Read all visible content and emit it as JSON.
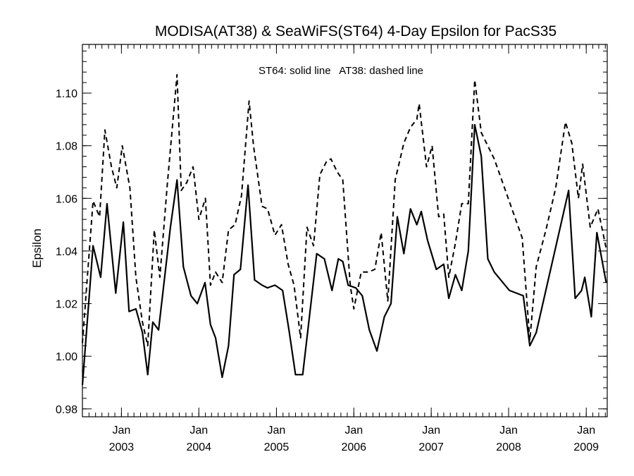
{
  "chart_data": {
    "type": "line",
    "title": "MODISA(AT38) & SeaWiFS(ST64) 4-Day Epsilon for PacS35",
    "annotation": "ST64: solid line   AT38: dashed line",
    "ylabel": "Epsilon",
    "xlabel": "",
    "xlim": [
      "2002-07-01",
      "2009-04-10"
    ],
    "ylim": [
      0.977,
      1.1185
    ],
    "y_ticks": [
      "0.98",
      "1.00",
      "1.02",
      "1.04",
      "1.06",
      "1.08",
      "1.10"
    ],
    "x_ticks": [
      {
        "month": "Jan",
        "year": "2003",
        "date": "2003-01-01"
      },
      {
        "month": "Jan",
        "year": "2004",
        "date": "2004-01-01"
      },
      {
        "month": "Jan",
        "year": "2005",
        "date": "2005-01-01"
      },
      {
        "month": "Jan",
        "year": "2006",
        "date": "2006-01-01"
      },
      {
        "month": "Jan",
        "year": "2007",
        "date": "2007-01-01"
      },
      {
        "month": "Jan",
        "year": "2008",
        "date": "2008-01-01"
      },
      {
        "month": "Jan",
        "year": "2009",
        "date": "2009-01-01"
      }
    ],
    "series": [
      {
        "style": "solid",
        "points": [
          [
            "2002-07-01",
            0.989
          ],
          [
            "2002-08-20",
            1.042
          ],
          [
            "2002-09-25",
            1.03
          ],
          [
            "2002-10-25",
            1.058
          ],
          [
            "2002-12-05",
            1.024
          ],
          [
            "2003-01-10",
            1.051
          ],
          [
            "2003-02-06",
            1.017
          ],
          [
            "2003-03-10",
            1.018
          ],
          [
            "2003-04-10",
            1.009
          ],
          [
            "2003-05-05",
            0.993
          ],
          [
            "2003-05-29",
            1.013
          ],
          [
            "2003-06-25",
            1.01
          ],
          [
            "2003-08-20",
            1.049
          ],
          [
            "2003-09-20",
            1.067
          ],
          [
            "2003-10-20",
            1.034
          ],
          [
            "2003-11-25",
            1.023
          ],
          [
            "2003-12-25",
            1.02
          ],
          [
            "2004-01-30",
            1.028
          ],
          [
            "2004-02-25",
            1.012
          ],
          [
            "2004-03-20",
            1.007
          ],
          [
            "2004-04-20",
            0.992
          ],
          [
            "2004-05-20",
            1.004
          ],
          [
            "2004-06-15",
            1.031
          ],
          [
            "2004-07-15",
            1.033
          ],
          [
            "2004-08-20",
            1.065
          ],
          [
            "2004-09-20",
            1.029
          ],
          [
            "2004-10-25",
            1.027
          ],
          [
            "2004-11-20",
            1.026
          ],
          [
            "2004-12-25",
            1.027
          ],
          [
            "2005-01-30",
            1.025
          ],
          [
            "2005-03-01",
            1.01
          ],
          [
            "2005-04-01",
            0.993
          ],
          [
            "2005-05-05",
            0.993
          ],
          [
            "2005-07-10",
            1.039
          ],
          [
            "2005-08-15",
            1.037
          ],
          [
            "2005-09-20",
            1.025
          ],
          [
            "2005-10-20",
            1.037
          ],
          [
            "2005-11-10",
            1.036
          ],
          [
            "2005-12-05",
            1.027
          ],
          [
            "2006-01-10",
            1.026
          ],
          [
            "2006-02-10",
            1.023
          ],
          [
            "2006-03-15",
            1.01
          ],
          [
            "2006-04-20",
            1.002
          ],
          [
            "2006-05-25",
            1.015
          ],
          [
            "2006-06-25",
            1.02
          ],
          [
            "2006-07-25",
            1.053
          ],
          [
            "2006-08-25",
            1.039
          ],
          [
            "2006-09-25",
            1.056
          ],
          [
            "2006-10-25",
            1.05
          ],
          [
            "2006-11-15",
            1.055
          ],
          [
            "2006-12-15",
            1.044
          ],
          [
            "2007-01-25",
            1.033
          ],
          [
            "2007-03-01",
            1.035
          ],
          [
            "2007-03-25",
            1.022
          ],
          [
            "2007-04-25",
            1.031
          ],
          [
            "2007-05-25",
            1.025
          ],
          [
            "2007-06-25",
            1.04
          ],
          [
            "2007-07-25",
            1.088
          ],
          [
            "2007-08-25",
            1.076
          ],
          [
            "2007-09-25",
            1.037
          ],
          [
            "2007-10-25",
            1.032
          ],
          [
            "2008-01-05",
            1.025
          ],
          [
            "2008-03-10",
            1.023
          ],
          [
            "2008-04-10",
            1.004
          ],
          [
            "2008-05-10",
            1.009
          ],
          [
            "2008-10-10",
            1.063
          ],
          [
            "2008-11-10",
            1.022
          ],
          [
            "2008-12-10",
            1.025
          ],
          [
            "2008-12-25",
            1.03
          ],
          [
            "2009-01-25",
            1.015
          ],
          [
            "2009-02-20",
            1.047
          ],
          [
            "2009-04-05",
            1.028
          ]
        ]
      },
      {
        "style": "dashed",
        "points": [
          [
            "2002-07-01",
            1.005
          ],
          [
            "2002-08-20",
            1.059
          ],
          [
            "2002-09-20",
            1.053
          ],
          [
            "2002-10-15",
            1.086
          ],
          [
            "2002-11-15",
            1.072
          ],
          [
            "2002-12-10",
            1.064
          ],
          [
            "2003-01-05",
            1.08
          ],
          [
            "2003-02-10",
            1.064
          ],
          [
            "2003-03-10",
            1.03
          ],
          [
            "2003-04-10",
            1.013
          ],
          [
            "2003-05-05",
            1.004
          ],
          [
            "2003-06-05",
            1.048
          ],
          [
            "2003-07-01",
            1.03
          ],
          [
            "2003-08-05",
            1.065
          ],
          [
            "2003-09-20",
            1.107
          ],
          [
            "2003-10-10",
            1.063
          ],
          [
            "2003-11-05",
            1.066
          ],
          [
            "2003-12-05",
            1.072
          ],
          [
            "2004-01-01",
            1.052
          ],
          [
            "2004-02-01",
            1.06
          ],
          [
            "2004-02-25",
            1.027
          ],
          [
            "2004-03-20",
            1.032
          ],
          [
            "2004-04-20",
            1.028
          ],
          [
            "2004-05-20",
            1.048
          ],
          [
            "2004-06-20",
            1.05
          ],
          [
            "2004-07-20",
            1.061
          ],
          [
            "2004-08-25",
            1.097
          ],
          [
            "2004-09-15",
            1.08
          ],
          [
            "2004-10-25",
            1.057
          ],
          [
            "2004-11-20",
            1.056
          ],
          [
            "2004-12-25",
            1.046
          ],
          [
            "2005-01-25",
            1.05
          ],
          [
            "2005-02-25",
            1.035
          ],
          [
            "2005-03-25",
            1.027
          ],
          [
            "2005-04-25",
            1.007
          ],
          [
            "2005-05-25",
            1.049
          ],
          [
            "2005-06-25",
            1.042
          ],
          [
            "2005-07-25",
            1.069
          ],
          [
            "2005-08-25",
            1.074
          ],
          [
            "2005-09-15",
            1.075
          ],
          [
            "2005-10-15",
            1.07
          ],
          [
            "2005-11-10",
            1.067
          ],
          [
            "2005-12-15",
            1.027
          ],
          [
            "2006-01-01",
            1.018
          ],
          [
            "2006-02-05",
            1.032
          ],
          [
            "2006-03-10",
            1.032
          ],
          [
            "2006-04-10",
            1.033
          ],
          [
            "2006-05-10",
            1.047
          ],
          [
            "2006-06-10",
            1.021
          ],
          [
            "2006-07-15",
            1.067
          ],
          [
            "2006-08-25",
            1.081
          ],
          [
            "2006-09-25",
            1.087
          ],
          [
            "2006-10-25",
            1.09
          ],
          [
            "2006-11-05",
            1.096
          ],
          [
            "2006-12-10",
            1.072
          ],
          [
            "2007-01-05",
            1.08
          ],
          [
            "2007-02-05",
            1.053
          ],
          [
            "2007-03-01",
            1.054
          ],
          [
            "2007-03-25",
            1.03
          ],
          [
            "2007-04-25",
            1.043
          ],
          [
            "2007-05-25",
            1.058
          ],
          [
            "2007-06-25",
            1.058
          ],
          [
            "2007-07-25",
            1.105
          ],
          [
            "2007-08-25",
            1.085
          ],
          [
            "2007-10-25",
            1.075
          ],
          [
            "2008-03-05",
            1.045
          ],
          [
            "2008-04-10",
            1.006
          ],
          [
            "2008-05-10",
            1.034
          ],
          [
            "2008-06-25",
            1.048
          ],
          [
            "2008-08-10",
            1.064
          ],
          [
            "2008-09-25",
            1.089
          ],
          [
            "2008-10-25",
            1.081
          ],
          [
            "2008-11-25",
            1.06
          ],
          [
            "2008-12-15",
            1.073
          ],
          [
            "2009-01-20",
            1.049
          ],
          [
            "2009-02-25",
            1.056
          ],
          [
            "2009-04-05",
            1.041
          ]
        ]
      }
    ]
  }
}
